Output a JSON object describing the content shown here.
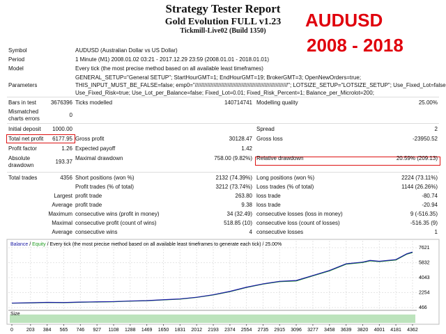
{
  "header": {
    "title": "Strategy Tester Report",
    "subtitle": "Gold Evolution FULL v1.23",
    "server": "Tickmill-Live02 (Build 1350)",
    "overlay_symbol": "AUDUSD",
    "overlay_years": "2008 - 2018"
  },
  "info": [
    {
      "label": "Symbol",
      "lines": [
        "AUDUSD (Australian Dollar vs US Dollar)"
      ]
    },
    {
      "label": "Period",
      "lines": [
        "1 Minute (M1) 2008.01.02 03:21 - 2017.12.29 23:59 (2008.01.01 - 2018.01.01)"
      ]
    },
    {
      "label": "Model",
      "lines": [
        "Every tick (the most precise method based on all available least timeframes)"
      ]
    },
    {
      "label": "Parameters",
      "lines": [
        "GENERAL_SETUP=\"General SETUP\"; StartHourGMT=1; EndHourGMT=19; BrokerGMT=3; OpenNewOrders=true;",
        "THIS_INPUT_MUST_BE_FALSE=false; emp0=\"////////////////////////////////////////////////////////////\"; LOTSIZE_SETUP=\"LOTSIZE_SETUP\"; Use_Fixed_Lot=false;",
        "Use_Fixed_Risk=true; Use_Lot_per_Balance=false; Fixed_Lot=0.01; Fixed_Risk_Percent=1; Balance_per_Microlot=200;"
      ]
    }
  ],
  "stats": [
    {
      "rows": [
        [
          "Bars in test",
          "3676396",
          "Ticks modelled",
          "140714741",
          "Modelling quality",
          "25.00%"
        ],
        [
          "Mismatched charts errors",
          "0",
          null,
          null,
          null,
          null
        ]
      ]
    },
    {
      "rows": [
        [
          "Initial deposit",
          "1000.00",
          null,
          null,
          "Spread",
          "2"
        ],
        [
          "Total net profit",
          "6177.95",
          "Gross profit",
          "30128.47",
          "Gross loss",
          "-23950.52"
        ],
        [
          "Profit factor",
          "1.26",
          "Expected payoff",
          "1.42",
          null,
          null
        ],
        [
          "Absolute drawdown",
          "193.37",
          "Maximal drawdown",
          "758.00 (9.82%)",
          "Relative drawdown",
          "20.59% (209.13)"
        ]
      ]
    },
    {
      "rows": [
        [
          "Total trades",
          "4356",
          "Short positions (won %)",
          "2132 (74.39%)",
          "Long positions (won %)",
          "2224 (73.11%)"
        ],
        [
          null,
          null,
          "Profit trades (% of total)",
          "3212 (73.74%)",
          "Loss trades (% of total)",
          "1144 (26.26%)"
        ],
        [
          "Largest",
          null,
          "profit trade",
          "263.80",
          "loss trade",
          "-80.74"
        ],
        [
          "Average",
          null,
          "profit trade",
          "9.38",
          "loss trade",
          "-20.94"
        ],
        [
          "Maximum",
          null,
          "consecutive wins (profit in money)",
          "34 (32.49)",
          "consecutive losses (loss in money)",
          "9 (-516.35)"
        ],
        [
          "Maximal",
          null,
          "consecutive profit (count of wins)",
          "518.85 (10)",
          "consecutive loss (count of losses)",
          "-516.35 (9)"
        ],
        [
          "Average",
          null,
          "consecutive wins",
          "4",
          "consecutive losses",
          "1"
        ]
      ]
    }
  ],
  "chart_data": {
    "type": "line",
    "legend_separator": "/",
    "description": "Every tick (the most precise method based on all available least timeframes to generate each tick)",
    "quality": "25.00%",
    "size_label": "Size",
    "x": [
      0,
      203,
      384,
      565,
      746,
      927,
      1108,
      1288,
      1469,
      1650,
      1831,
      2012,
      2193,
      2374,
      2554,
      2735,
      2915,
      3096,
      3277,
      3458,
      3639,
      3820,
      3900,
      4001,
      4181,
      4300,
      4362
    ],
    "series": [
      {
        "name": "Balance",
        "color": "#1a1aa6",
        "values": [
          1000,
          1040,
          1090,
          1070,
          1120,
          1150,
          1180,
          1250,
          1300,
          1400,
          1500,
          1700,
          2000,
          2400,
          2900,
          3300,
          3600,
          3700,
          4300,
          4900,
          5700,
          5900,
          6100,
          6000,
          6200,
          6900,
          7100
        ]
      },
      {
        "name": "Equity",
        "color": "#1f9c1f",
        "values": [
          990,
          1020,
          1070,
          1050,
          1100,
          1130,
          1160,
          1230,
          1280,
          1380,
          1470,
          1680,
          1970,
          2370,
          2860,
          3270,
          3560,
          3650,
          4260,
          4850,
          5650,
          5850,
          6050,
          5950,
          6150,
          6850,
          7050
        ]
      }
    ],
    "xlim": [
      -38,
      4408
    ],
    "ylim": [
      133,
      8453
    ],
    "xticks": [
      0,
      203,
      384,
      565,
      746,
      927,
      1108,
      1288,
      1469,
      1650,
      1831,
      2012,
      2193,
      2374,
      2554,
      2735,
      2915,
      3096,
      3277,
      3458,
      3639,
      3820,
      4001,
      4181,
      4362
    ],
    "yticks": [
      466,
      2254,
      4043,
      5832,
      7621
    ],
    "grid": true
  }
}
